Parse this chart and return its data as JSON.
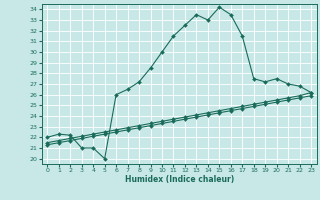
{
  "xlabel": "Humidex (Indice chaleur)",
  "background_color": "#c8e8e8",
  "grid_color": "#ffffff",
  "line_color": "#1a6b5a",
  "xlim": [
    -0.5,
    23.5
  ],
  "ylim": [
    19.5,
    34.5
  ],
  "xticks": [
    0,
    1,
    2,
    3,
    4,
    5,
    6,
    7,
    8,
    9,
    10,
    11,
    12,
    13,
    14,
    15,
    16,
    17,
    18,
    19,
    20,
    21,
    22,
    23
  ],
  "yticks": [
    20,
    21,
    22,
    23,
    24,
    25,
    26,
    27,
    28,
    29,
    30,
    31,
    32,
    33,
    34
  ],
  "curve1_x": [
    0,
    1,
    2,
    3,
    4,
    5,
    6,
    7,
    8,
    9,
    10,
    11,
    12,
    13,
    14,
    15,
    16,
    17,
    18,
    19,
    20,
    21,
    22,
    23
  ],
  "curve1_y": [
    22.0,
    22.3,
    22.2,
    21.0,
    21.0,
    20.0,
    26.0,
    26.5,
    27.2,
    28.5,
    30.0,
    31.5,
    32.5,
    33.5,
    33.0,
    34.2,
    33.5,
    31.5,
    27.5,
    27.2,
    27.5,
    27.0,
    26.8,
    26.2
  ],
  "curve2_x": [
    0,
    1,
    2,
    3,
    4,
    5,
    6,
    7,
    8,
    9,
    10,
    11,
    12,
    13,
    14,
    15,
    16,
    17,
    18,
    19,
    20,
    21,
    22,
    23
  ],
  "curve2_y": [
    21.5,
    21.7,
    21.9,
    22.1,
    22.3,
    22.5,
    22.7,
    22.9,
    23.1,
    23.3,
    23.5,
    23.7,
    23.9,
    24.1,
    24.3,
    24.5,
    24.7,
    24.9,
    25.1,
    25.3,
    25.5,
    25.7,
    25.9,
    26.2
  ],
  "curve3_x": [
    0,
    1,
    2,
    3,
    4,
    5,
    6,
    7,
    8,
    9,
    10,
    11,
    12,
    13,
    14,
    15,
    16,
    17,
    18,
    19,
    20,
    21,
    22,
    23
  ],
  "curve3_y": [
    21.3,
    21.5,
    21.7,
    21.9,
    22.1,
    22.3,
    22.5,
    22.7,
    22.9,
    23.1,
    23.3,
    23.5,
    23.7,
    23.9,
    24.1,
    24.3,
    24.5,
    24.7,
    24.9,
    25.1,
    25.3,
    25.5,
    25.7,
    25.9
  ]
}
